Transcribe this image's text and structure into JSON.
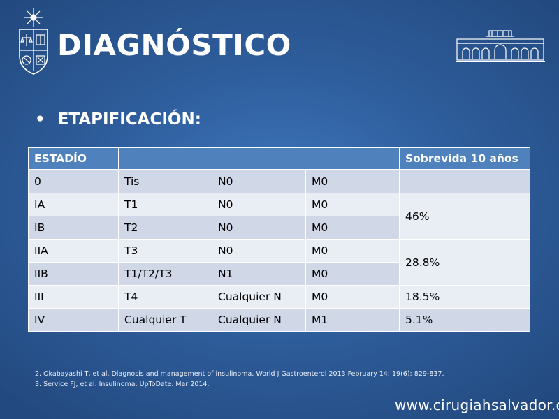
{
  "slide": {
    "title": "DIAGNÓSTICO",
    "bullet": "ETAPIFICACIÓN:"
  },
  "table": {
    "headers": [
      "ESTADÍO",
      "",
      "Sobrevida 10 años"
    ],
    "rows": [
      {
        "stage": "0",
        "t": "Tis",
        "n": "N0",
        "m": "M0",
        "survival": ""
      },
      {
        "stage": "IA",
        "t": "T1",
        "n": "N0",
        "m": "M0",
        "survival": "46%"
      },
      {
        "stage": "IB",
        "t": "T2",
        "n": "N0",
        "m": "M0",
        "survival": ""
      },
      {
        "stage": "IIA",
        "t": "T3",
        "n": "N0",
        "m": "M0",
        "survival": "28.8%"
      },
      {
        "stage": "IIB",
        "t": "T1/T2/T3",
        "n": "N1",
        "m": "M0",
        "survival": ""
      },
      {
        "stage": "III",
        "t": "T4",
        "n": "Cualquier N",
        "m": "M0",
        "survival": "18.5%"
      },
      {
        "stage": "IV",
        "t": "Cualquier T",
        "n": "Cualquier N",
        "m": "M1",
        "survival": "5.1%"
      }
    ]
  },
  "references": [
    "2. Okabayashi T, et al. Diagnosis and management of insulinoma. World J Gastroenterol 2013 February 14; 19(6): 829-837.",
    "3. Service FJ, et al. Insulinoma. UpToDate. Mar 2014."
  ],
  "footer": {
    "website": "www.cirugiahsalvador.cl"
  },
  "colors": {
    "background": "#2f5f9e",
    "header_row": "#4f81bd",
    "row_light": "#e9edf4",
    "row_dark": "#d0d8e8"
  },
  "icons": {
    "left_logo": "university-crest-icon",
    "right_logo": "hospital-building-icon"
  }
}
